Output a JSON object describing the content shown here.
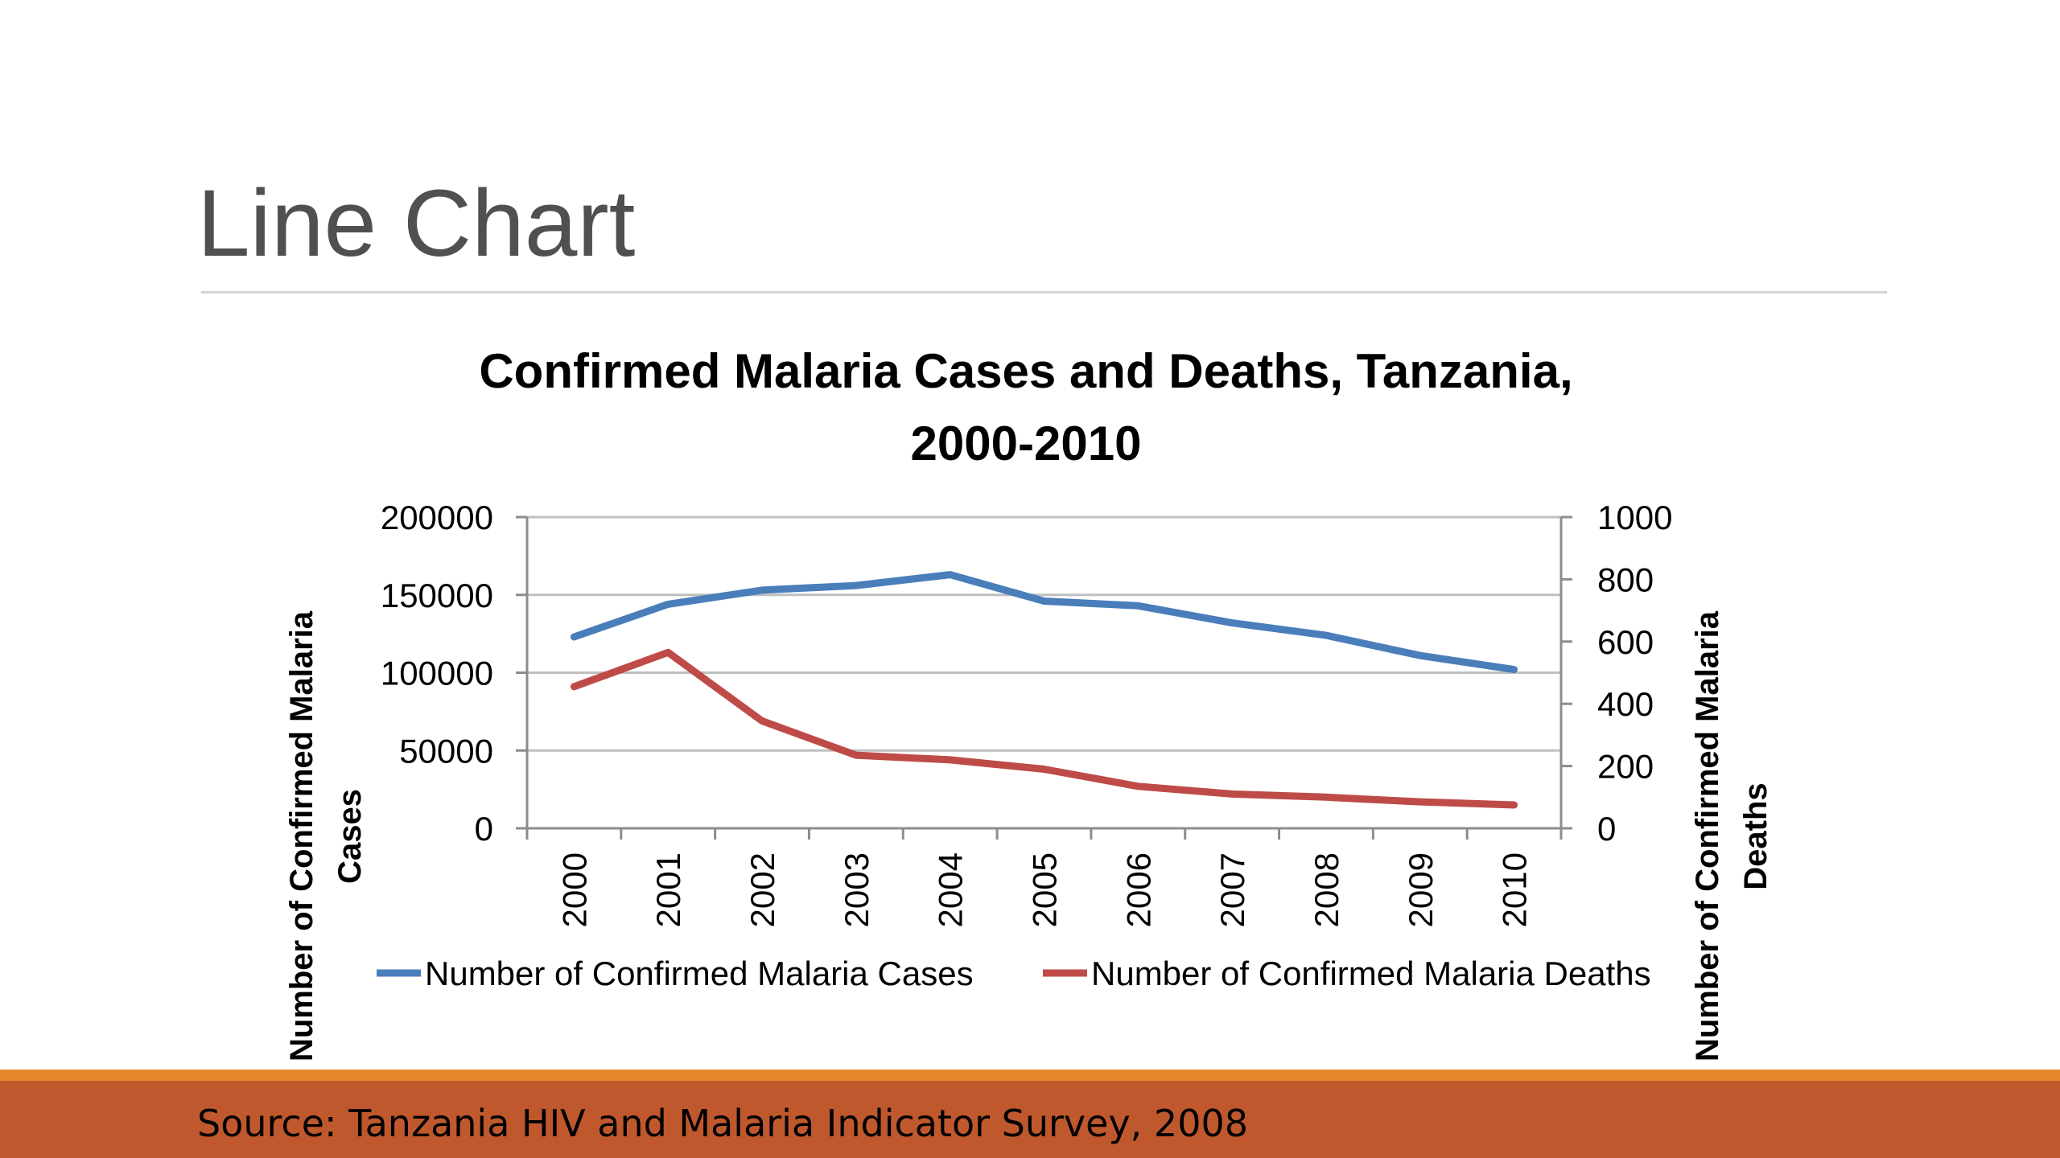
{
  "slide": {
    "title": "Line Chart",
    "source": "Source: Tanzania HIV and Malaria Indicator Survey, 2008"
  },
  "colors": {
    "cases": "#4a7ebb",
    "deaths": "#be4b48",
    "footer_band": "#c0582e",
    "footer_accent": "#e5872a"
  },
  "chart_data": {
    "type": "line",
    "title_lines": [
      "Confirmed Malaria Cases and Deaths, Tanzania,",
      "2000-2010"
    ],
    "x": [
      "2000",
      "2001",
      "2002",
      "2003",
      "2004",
      "2005",
      "2006",
      "2007",
      "2008",
      "2009",
      "2010"
    ],
    "y_left_label_lines": [
      "Number of Confirmed Malaria",
      "Cases"
    ],
    "y_right_label_lines": [
      "Number of Confirmed Malaria",
      "Deaths"
    ],
    "y_left_range": [
      0,
      200000
    ],
    "y_left_ticks": [
      "0",
      "50000",
      "100000",
      "150000",
      "200000"
    ],
    "y_right_range": [
      0,
      1000
    ],
    "y_right_ticks": [
      "0",
      "200",
      "400",
      "600",
      "800",
      "1000"
    ],
    "grid": true,
    "legend": "bottom",
    "series": [
      {
        "name": "Number of Confirmed Malaria Cases",
        "axis": "left",
        "values": [
          123000,
          144000,
          153000,
          156000,
          163000,
          146000,
          143000,
          132000,
          124000,
          111000,
          102000
        ]
      },
      {
        "name": "Number of Confirmed Malaria Deaths",
        "axis": "right",
        "values": [
          455,
          565,
          345,
          235,
          220,
          190,
          135,
          110,
          100,
          85,
          75
        ]
      }
    ]
  }
}
